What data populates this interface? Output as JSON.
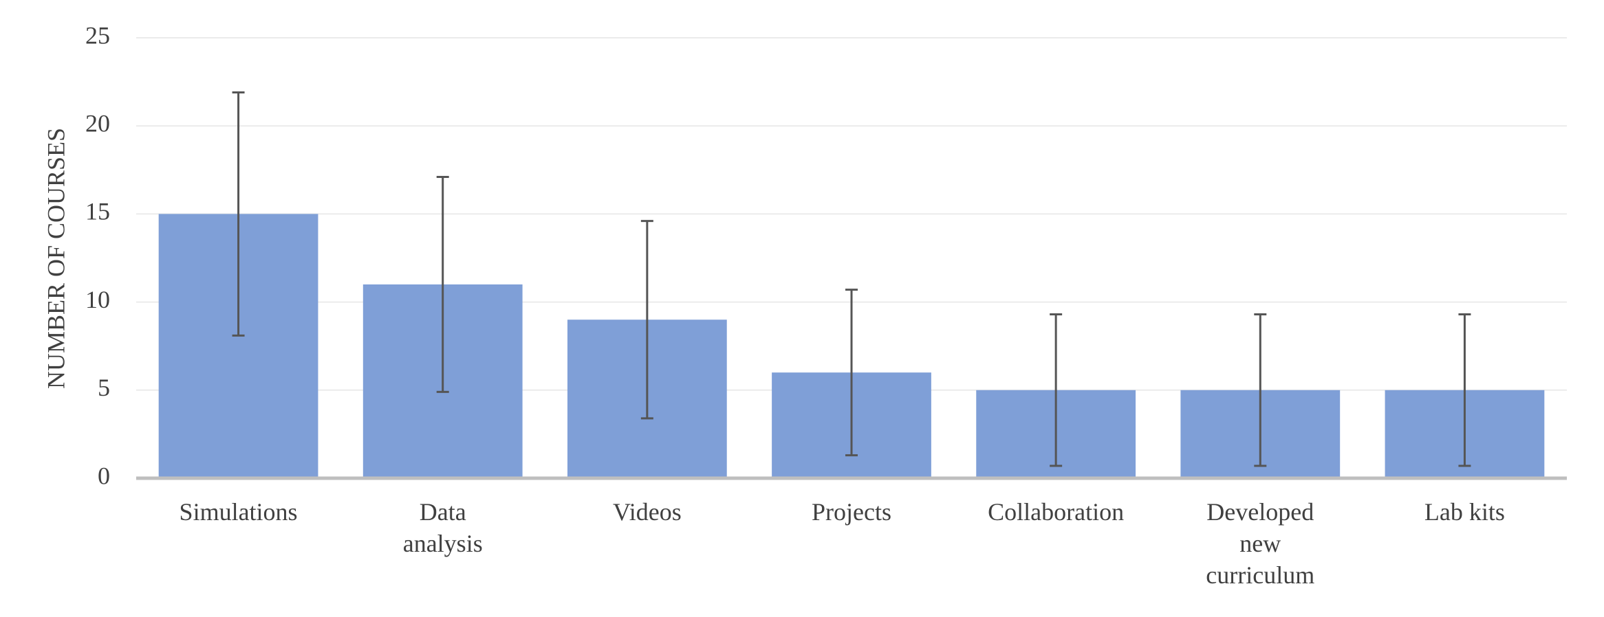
{
  "chart_data": {
    "type": "bar",
    "y_label": "NUMBER OF COURSES",
    "categories": [
      "Simulations",
      "Data\nanalysis",
      "Videos",
      "Projects",
      "Collaboration",
      "Developed\nnew\ncurriculum",
      "Lab kits"
    ],
    "values": [
      15,
      11,
      9,
      6,
      5,
      5,
      5
    ],
    "errors": [
      6.9,
      6.1,
      5.6,
      4.7,
      4.3,
      4.3,
      4.3
    ],
    "color": "#7f9fd7",
    "ylim": [
      0,
      25
    ],
    "yticks": [
      0,
      5,
      10,
      15,
      20,
      25
    ],
    "grid": true
  }
}
